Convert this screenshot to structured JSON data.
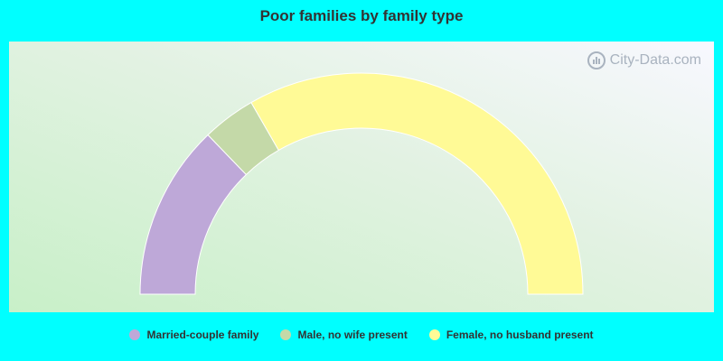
{
  "chart_data": {
    "type": "pie",
    "title": "Poor families by family type",
    "categories": [
      "Married-couple family",
      "Male, no wife present",
      "Female, no husband present"
    ],
    "values": [
      25.6,
      7.8,
      66.6
    ],
    "colors": [
      "#bea8d8",
      "#c4d9a8",
      "#fffa96"
    ],
    "legend_position": "bottom"
  },
  "watermark": {
    "text": "City-Data.com"
  }
}
